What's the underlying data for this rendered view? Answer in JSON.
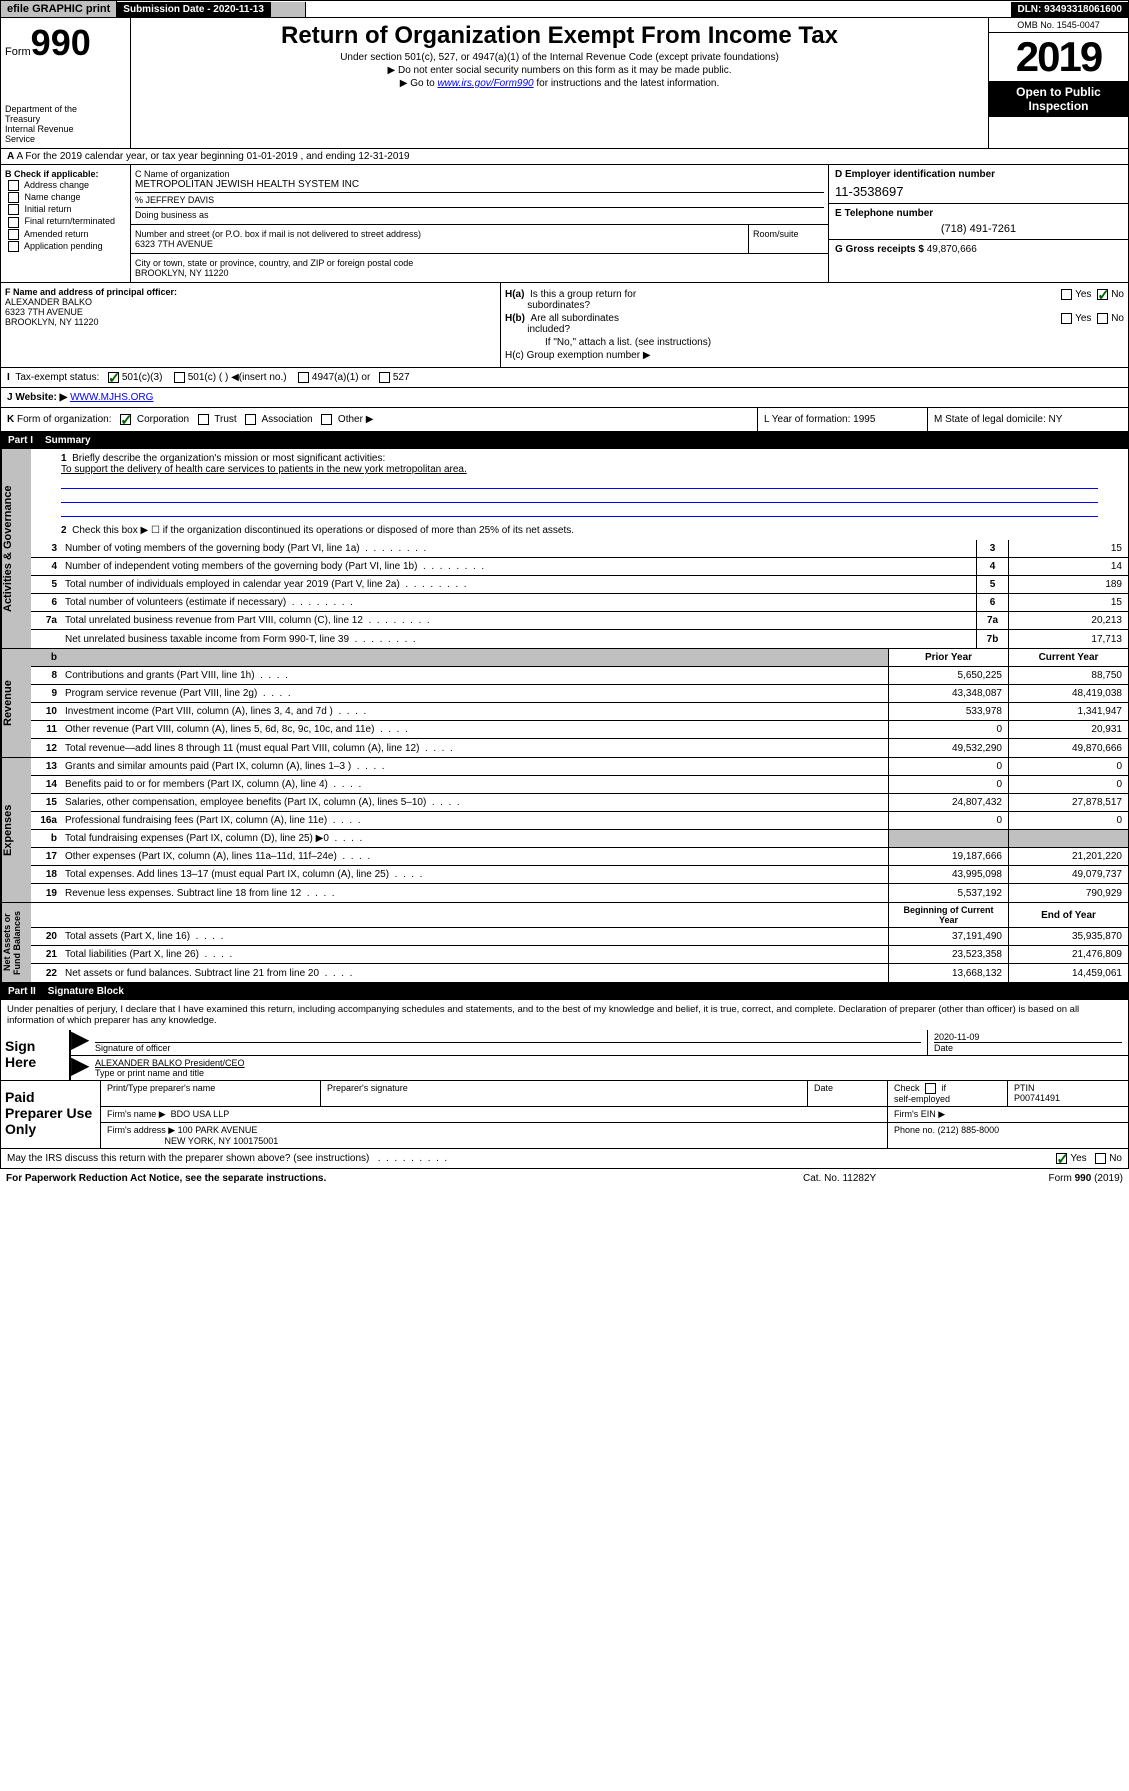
{
  "top": {
    "efile": "efile GRAPHIC print",
    "subdate_label": "Submission Date - 2020-11-13",
    "dln": "DLN: 93493318061600"
  },
  "header": {
    "form": "Form",
    "form_num": "990",
    "dept": "Department of the Treasury\nInternal Revenue Service",
    "title": "Return of Organization Exempt From Income Tax",
    "subtitle": "Under section 501(c), 527, or 4947(a)(1) of the Internal Revenue Code (except private foundations)",
    "note1": "▶ Do not enter social security numbers on this form as it may be made public.",
    "note2": "▶ Go to www.irs.gov/Form990 for instructions and the latest information.",
    "omb": "OMB No. 1545-0047",
    "year": "2019",
    "open": "Open to Public Inspection"
  },
  "rowA": "A For the 2019 calendar year, or tax year beginning 01-01-2019     , and ending 12-31-2019",
  "boxB": {
    "label": "B Check if applicable:",
    "opts": [
      "Address change",
      "Name change",
      "Initial return",
      "Final return/terminated",
      "Amended return",
      "Application pending"
    ]
  },
  "boxC": {
    "label": "C Name of organization",
    "org": "METROPOLITAN JEWISH HEALTH SYSTEM INC",
    "care_of_label": "% JEFFREY DAVIS",
    "dba_label": "Doing business as",
    "street_label": "Number and street (or P.O. box if mail is not delivered to street address)",
    "street": "6323 7TH AVENUE",
    "room_label": "Room/suite",
    "city_label": "City or town, state or province, country, and ZIP or foreign postal code",
    "city": "BROOKLYN, NY  11220"
  },
  "boxD": {
    "label": "D Employer identification number",
    "val": "11-3538697"
  },
  "boxE": {
    "label": "E Telephone number",
    "val": "(718) 491-7261"
  },
  "boxG": {
    "label": "G Gross receipts $",
    "val": "49,870,666"
  },
  "boxF": {
    "label": "F  Name and address of principal officer:",
    "name": "ALEXANDER BALKO",
    "addr1": "6323 7TH AVENUE",
    "addr2": "BROOKLYN, NY  11220"
  },
  "boxH": {
    "ha": "H(a)  Is this a group return for subordinates?",
    "hb": "H(b)  Are all subordinates included?",
    "hb_note": "If \"No,\" attach a list. (see instructions)",
    "hc": "H(c)  Group exemption number ▶"
  },
  "taxExempt": {
    "label": "I  Tax-exempt status:",
    "opts": [
      "501(c)(3)",
      "501(c) (  ) ◀(insert no.)",
      "4947(a)(1) or",
      "527"
    ]
  },
  "website": {
    "label": "J  Website: ▶",
    "val": " WWW.MJHS.ORG"
  },
  "rowK": {
    "label": "K Form of organization:",
    "opts": [
      "Corporation",
      "Trust",
      "Association",
      "Other ▶"
    ]
  },
  "rowL": "L Year of formation: 1995",
  "rowM": "M State of legal domicile: NY",
  "part1": {
    "title": "Part I",
    "sub": "Summary",
    "l1": "Briefly describe the organization's mission or most significant activities:",
    "l1_val": "To support the delivery of health care services to patients in the new york metropolitan area.",
    "l2": "Check this box ▶ ☐  if the organization discontinued its operations or disposed of more than 25% of its net assets.",
    "lines_gov": [
      {
        "n": "3",
        "t": "Number of voting members of the governing body (Part VI, line 1a)",
        "box": "3",
        "v": "15"
      },
      {
        "n": "4",
        "t": "Number of independent voting members of the governing body (Part VI, line 1b)",
        "box": "4",
        "v": "14"
      },
      {
        "n": "5",
        "t": "Total number of individuals employed in calendar year 2019 (Part V, line 2a)",
        "box": "5",
        "v": "189"
      },
      {
        "n": "6",
        "t": "Total number of volunteers (estimate if necessary)",
        "box": "6",
        "v": "15"
      },
      {
        "n": "7a",
        "t": "Total unrelated business revenue from Part VIII, column (C), line 12",
        "box": "7a",
        "v": "20,213"
      },
      {
        "n": "",
        "t": "Net unrelated business taxable income from Form 990-T, line 39",
        "box": "7b",
        "v": "17,713"
      }
    ],
    "col_prior": "Prior Year",
    "col_current": "Current Year",
    "lines_rev": [
      {
        "n": "8",
        "t": "Contributions and grants (Part VIII, line 1h)",
        "p": "5,650,225",
        "c": "88,750"
      },
      {
        "n": "9",
        "t": "Program service revenue (Part VIII, line 2g)",
        "p": "43,348,087",
        "c": "48,419,038"
      },
      {
        "n": "10",
        "t": "Investment income (Part VIII, column (A), lines 3, 4, and 7d )",
        "p": "533,978",
        "c": "1,341,947"
      },
      {
        "n": "11",
        "t": "Other revenue (Part VIII, column (A), lines 5, 6d, 8c, 9c, 10c, and 11e)",
        "p": "0",
        "c": "20,931"
      },
      {
        "n": "12",
        "t": "Total revenue—add lines 8 through 11 (must equal Part VIII, column (A), line 12)",
        "p": "49,532,290",
        "c": "49,870,666"
      }
    ],
    "lines_exp": [
      {
        "n": "13",
        "t": "Grants and similar amounts paid (Part IX, column (A), lines 1–3 )",
        "p": "0",
        "c": "0"
      },
      {
        "n": "14",
        "t": "Benefits paid to or for members (Part IX, column (A), line 4)",
        "p": "0",
        "c": "0"
      },
      {
        "n": "15",
        "t": "Salaries, other compensation, employee benefits (Part IX, column (A), lines 5–10)",
        "p": "24,807,432",
        "c": "27,878,517"
      },
      {
        "n": "16a",
        "t": "Professional fundraising fees (Part IX, column (A), line 11e)",
        "p": "0",
        "c": "0"
      },
      {
        "n": "b",
        "t": "Total fundraising expenses (Part IX, column (D), line 25) ▶0",
        "p": "",
        "c": "",
        "shaded": true
      },
      {
        "n": "17",
        "t": "Other expenses (Part IX, column (A), lines 11a–11d, 11f–24e)",
        "p": "19,187,666",
        "c": "21,201,220"
      },
      {
        "n": "18",
        "t": "Total expenses. Add lines 13–17 (must equal Part IX, column (A), line 25)",
        "p": "43,995,098",
        "c": "49,079,737"
      },
      {
        "n": "19",
        "t": "Revenue less expenses. Subtract line 18 from line 12",
        "p": "5,537,192",
        "c": "790,929"
      }
    ],
    "col_begin": "Beginning of Current Year",
    "col_end": "End of Year",
    "lines_net": [
      {
        "n": "20",
        "t": "Total assets (Part X, line 16)",
        "p": "37,191,490",
        "c": "35,935,870"
      },
      {
        "n": "21",
        "t": "Total liabilities (Part X, line 26)",
        "p": "23,523,358",
        "c": "21,476,809"
      },
      {
        "n": "22",
        "t": "Net assets or fund balances. Subtract line 21 from line 20",
        "p": "13,668,132",
        "c": "14,459,061"
      }
    ]
  },
  "part2": {
    "title": "Part II",
    "sub": "Signature Block",
    "perjury": "Under penalties of perjury, I declare that I have examined this return, including accompanying schedules and statements, and to the best of my knowledge and belief, it is true, correct, and complete. Declaration of preparer (other than officer) is based on all information of which preparer has any knowledge.",
    "sign_here": "Sign Here",
    "sig_officer": "Signature of officer",
    "sig_date": "2020-11-09",
    "date_label": "Date",
    "officer_name": "ALEXANDER BALKO  President/CEO",
    "type_name": "Type or print name and title",
    "paid": "Paid Preparer Use Only",
    "prep_name_label": "Print/Type preparer's name",
    "prep_sig_label": "Preparer's signature",
    "prep_date_label": "Date",
    "self_emp": "Check ☐ if self-employed",
    "ptin_label": "PTIN",
    "ptin": "P00741491",
    "firm_name_label": "Firm's name     ▶",
    "firm_name": "BDO USA LLP",
    "firm_ein_label": "Firm's EIN ▶",
    "firm_addr_label": "Firm's address ▶",
    "firm_addr": "100 PARK AVENUE",
    "firm_city": "NEW YORK, NY  100175001",
    "firm_phone_label": "Phone no.",
    "firm_phone": "(212) 885-8000"
  },
  "bottom": {
    "discuss": "May the IRS discuss this return with the preparer shown above? (see instructions)",
    "paperwork": "For Paperwork Reduction Act Notice, see the separate instructions.",
    "cat": "Cat. No. 11282Y",
    "form": "Form 990 (2019)"
  }
}
